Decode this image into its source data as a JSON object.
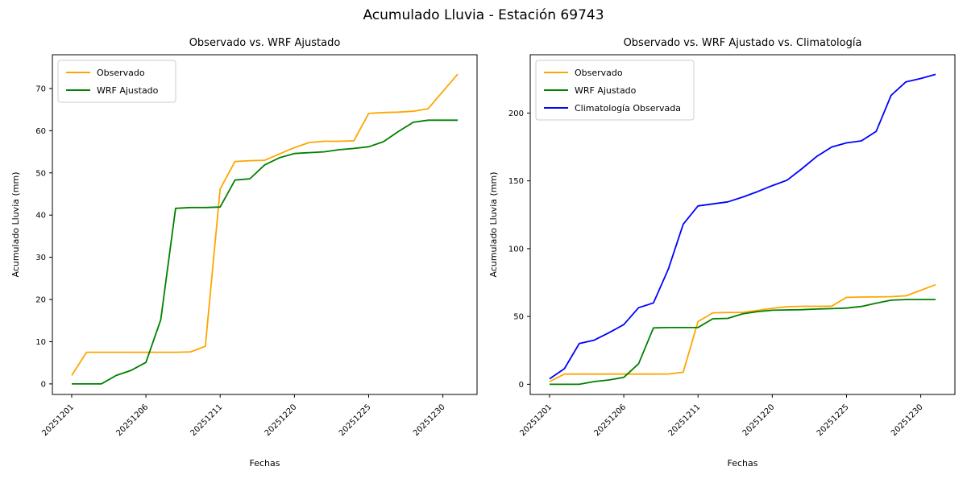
{
  "figure": {
    "suptitle": "Acumulado Lluvia - Estación 69743",
    "background": "#ffffff"
  },
  "chart_data": [
    {
      "type": "line",
      "title": "Observado vs. WRF Ajustado",
      "xlabel": "Fechas",
      "ylabel": "Acumulado Lluvia (mm)",
      "x_tick_labels": [
        "20251201",
        "20251206",
        "20251211",
        "20251220",
        "20251225",
        "20251230"
      ],
      "x_tick_indices": [
        0,
        5,
        10,
        15,
        20,
        25
      ],
      "n_points": 27,
      "xlim": [
        -1.3,
        27.3
      ],
      "ylim": [
        -2.5,
        78
      ],
      "yticks": [
        0,
        10,
        20,
        30,
        40,
        50,
        60,
        70
      ],
      "grid": false,
      "legend_position": "upper left",
      "series": [
        {
          "name": "Observado",
          "color": "#FFA500",
          "values": [
            2,
            7.5,
            7.5,
            7.5,
            7.5,
            7.5,
            7.5,
            7.5,
            7.6,
            8.9,
            46.2,
            52.7,
            52.9,
            53.0,
            54.5,
            56.0,
            57.2,
            57.5,
            57.5,
            57.6,
            64.1,
            64.3,
            64.4,
            64.6,
            65.2,
            69.3,
            73.4
          ]
        },
        {
          "name": "WRF Ajustado",
          "color": "#008000",
          "values": [
            0,
            0,
            0,
            2.0,
            3.2,
            5.1,
            15.2,
            41.6,
            41.8,
            41.8,
            41.9,
            48.3,
            48.6,
            51.9,
            53.6,
            54.6,
            54.8,
            55.0,
            55.5,
            55.8,
            56.2,
            57.4,
            59.8,
            62.0,
            62.5,
            62.5,
            62.5
          ]
        }
      ]
    },
    {
      "type": "line",
      "title": "Observado vs. WRF Ajustado vs. Climatología",
      "xlabel": "Fechas",
      "ylabel": "Acumulado Lluvia (mm)",
      "x_tick_labels": [
        "20251201",
        "20251206",
        "20251211",
        "20251220",
        "20251225",
        "20251230"
      ],
      "x_tick_indices": [
        0,
        5,
        10,
        15,
        20,
        25
      ],
      "n_points": 27,
      "xlim": [
        -1.3,
        27.3
      ],
      "ylim": [
        -7.5,
        243
      ],
      "yticks": [
        0,
        50,
        100,
        150,
        200
      ],
      "grid": false,
      "legend_position": "upper left",
      "series": [
        {
          "name": "Observado",
          "color": "#FFA500",
          "values": [
            2,
            7.5,
            7.5,
            7.5,
            7.5,
            7.5,
            7.5,
            7.5,
            7.6,
            8.9,
            46.2,
            52.7,
            52.9,
            53.0,
            54.5,
            56.0,
            57.2,
            57.5,
            57.5,
            57.6,
            64.1,
            64.3,
            64.4,
            64.6,
            65.2,
            69.3,
            73.4
          ]
        },
        {
          "name": "WRF Ajustado",
          "color": "#008000",
          "values": [
            0,
            0,
            0,
            2.0,
            3.2,
            5.1,
            15.2,
            41.6,
            41.8,
            41.8,
            41.9,
            48.3,
            48.6,
            51.9,
            53.6,
            54.6,
            54.8,
            55.0,
            55.5,
            55.8,
            56.2,
            57.4,
            59.8,
            62.0,
            62.5,
            62.5,
            62.5
          ]
        },
        {
          "name": "Climatología Observada",
          "color": "#0000FF",
          "values": [
            4,
            11.5,
            30,
            32.5,
            38,
            44,
            56.5,
            60,
            85,
            118,
            131.5,
            133,
            134.5,
            138,
            142,
            146.5,
            150.5,
            159,
            168,
            175,
            178,
            179.5,
            186.5,
            213,
            223,
            225.5,
            228.5
          ]
        }
      ]
    }
  ]
}
